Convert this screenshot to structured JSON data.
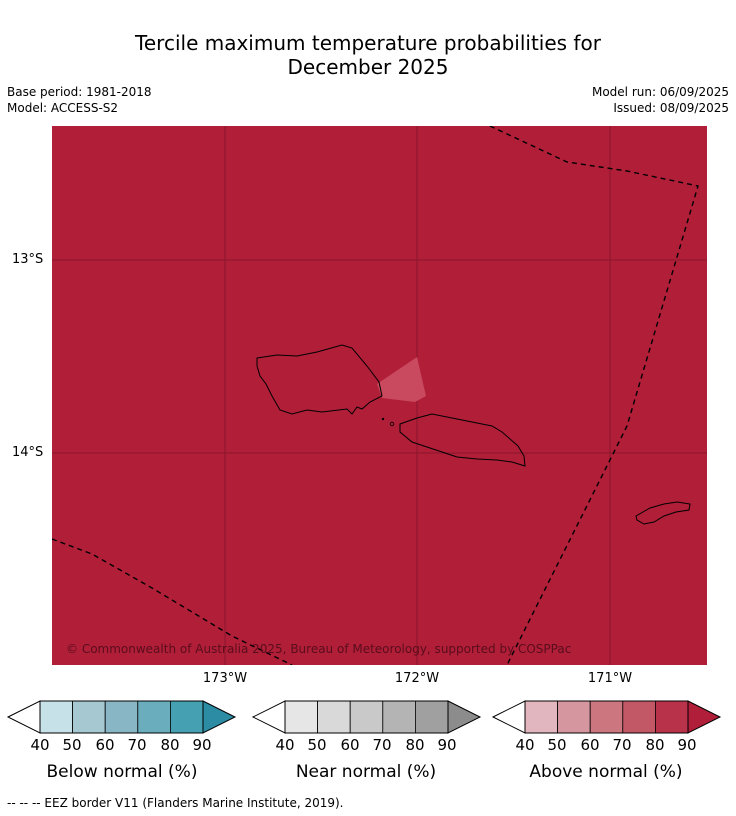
{
  "title_line1": "Tercile maximum temperature probabilities for",
  "title_line2": "December 2025",
  "base_period": "Base period: 1981-2018",
  "model": "Model: ACCESS-S2",
  "model_run": "Model run: 06/09/2025",
  "issued": "Issued: 08/09/2025",
  "lat_labels": [
    "13°S",
    "14°S"
  ],
  "lon_labels": [
    "173°W",
    "172°W",
    "171°W"
  ],
  "copyright": "© Commonwealth of Australia 2025, Bureau of Meteorology, supported by COSPPac",
  "colorbars": [
    {
      "label": "Below normal (%)",
      "ticks": [
        "40",
        "50",
        "60",
        "70",
        "80",
        "90"
      ],
      "colors": [
        "#c7e1e8",
        "#a6c8d1",
        "#88b6c4",
        "#6aaebe",
        "#45a0b2",
        "#2c8ca3"
      ]
    },
    {
      "label": "Near normal (%)",
      "ticks": [
        "40",
        "50",
        "60",
        "70",
        "80",
        "90"
      ],
      "colors": [
        "#e6e6e6",
        "#d9d9d9",
        "#c9c9c9",
        "#b4b4b4",
        "#a0a0a0",
        "#8c8c8c"
      ]
    },
    {
      "label": "Above normal (%)",
      "ticks": [
        "40",
        "50",
        "60",
        "70",
        "80",
        "90"
      ],
      "colors": [
        "#e2b6be",
        "#d6969f",
        "#cc7680",
        "#c25766",
        "#b8324a",
        "#b01e3a"
      ]
    }
  ],
  "map_fill_color": "#b01e38",
  "footnote": "--  --  -- EEZ border V11 (Flanders Marine Institute, 2019)."
}
